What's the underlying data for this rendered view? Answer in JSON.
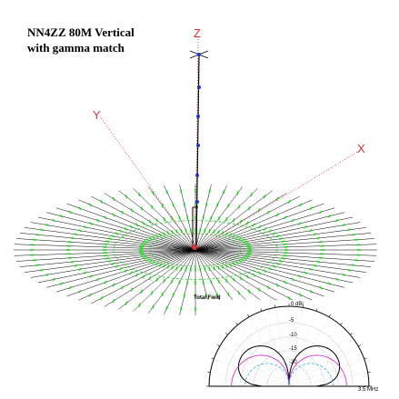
{
  "header": {
    "title_lines": [
      "NN4ZZ 80M Vertical",
      "with gamma match"
    ]
  },
  "axes": {
    "z": "Z",
    "y": "Y",
    "x": "X"
  },
  "pattern": {
    "title": "Total Field",
    "ring_labels": [
      "0 dBi",
      "-5",
      "-10",
      "-15",
      "-20"
    ],
    "frequency": "3.5 MHz"
  }
}
